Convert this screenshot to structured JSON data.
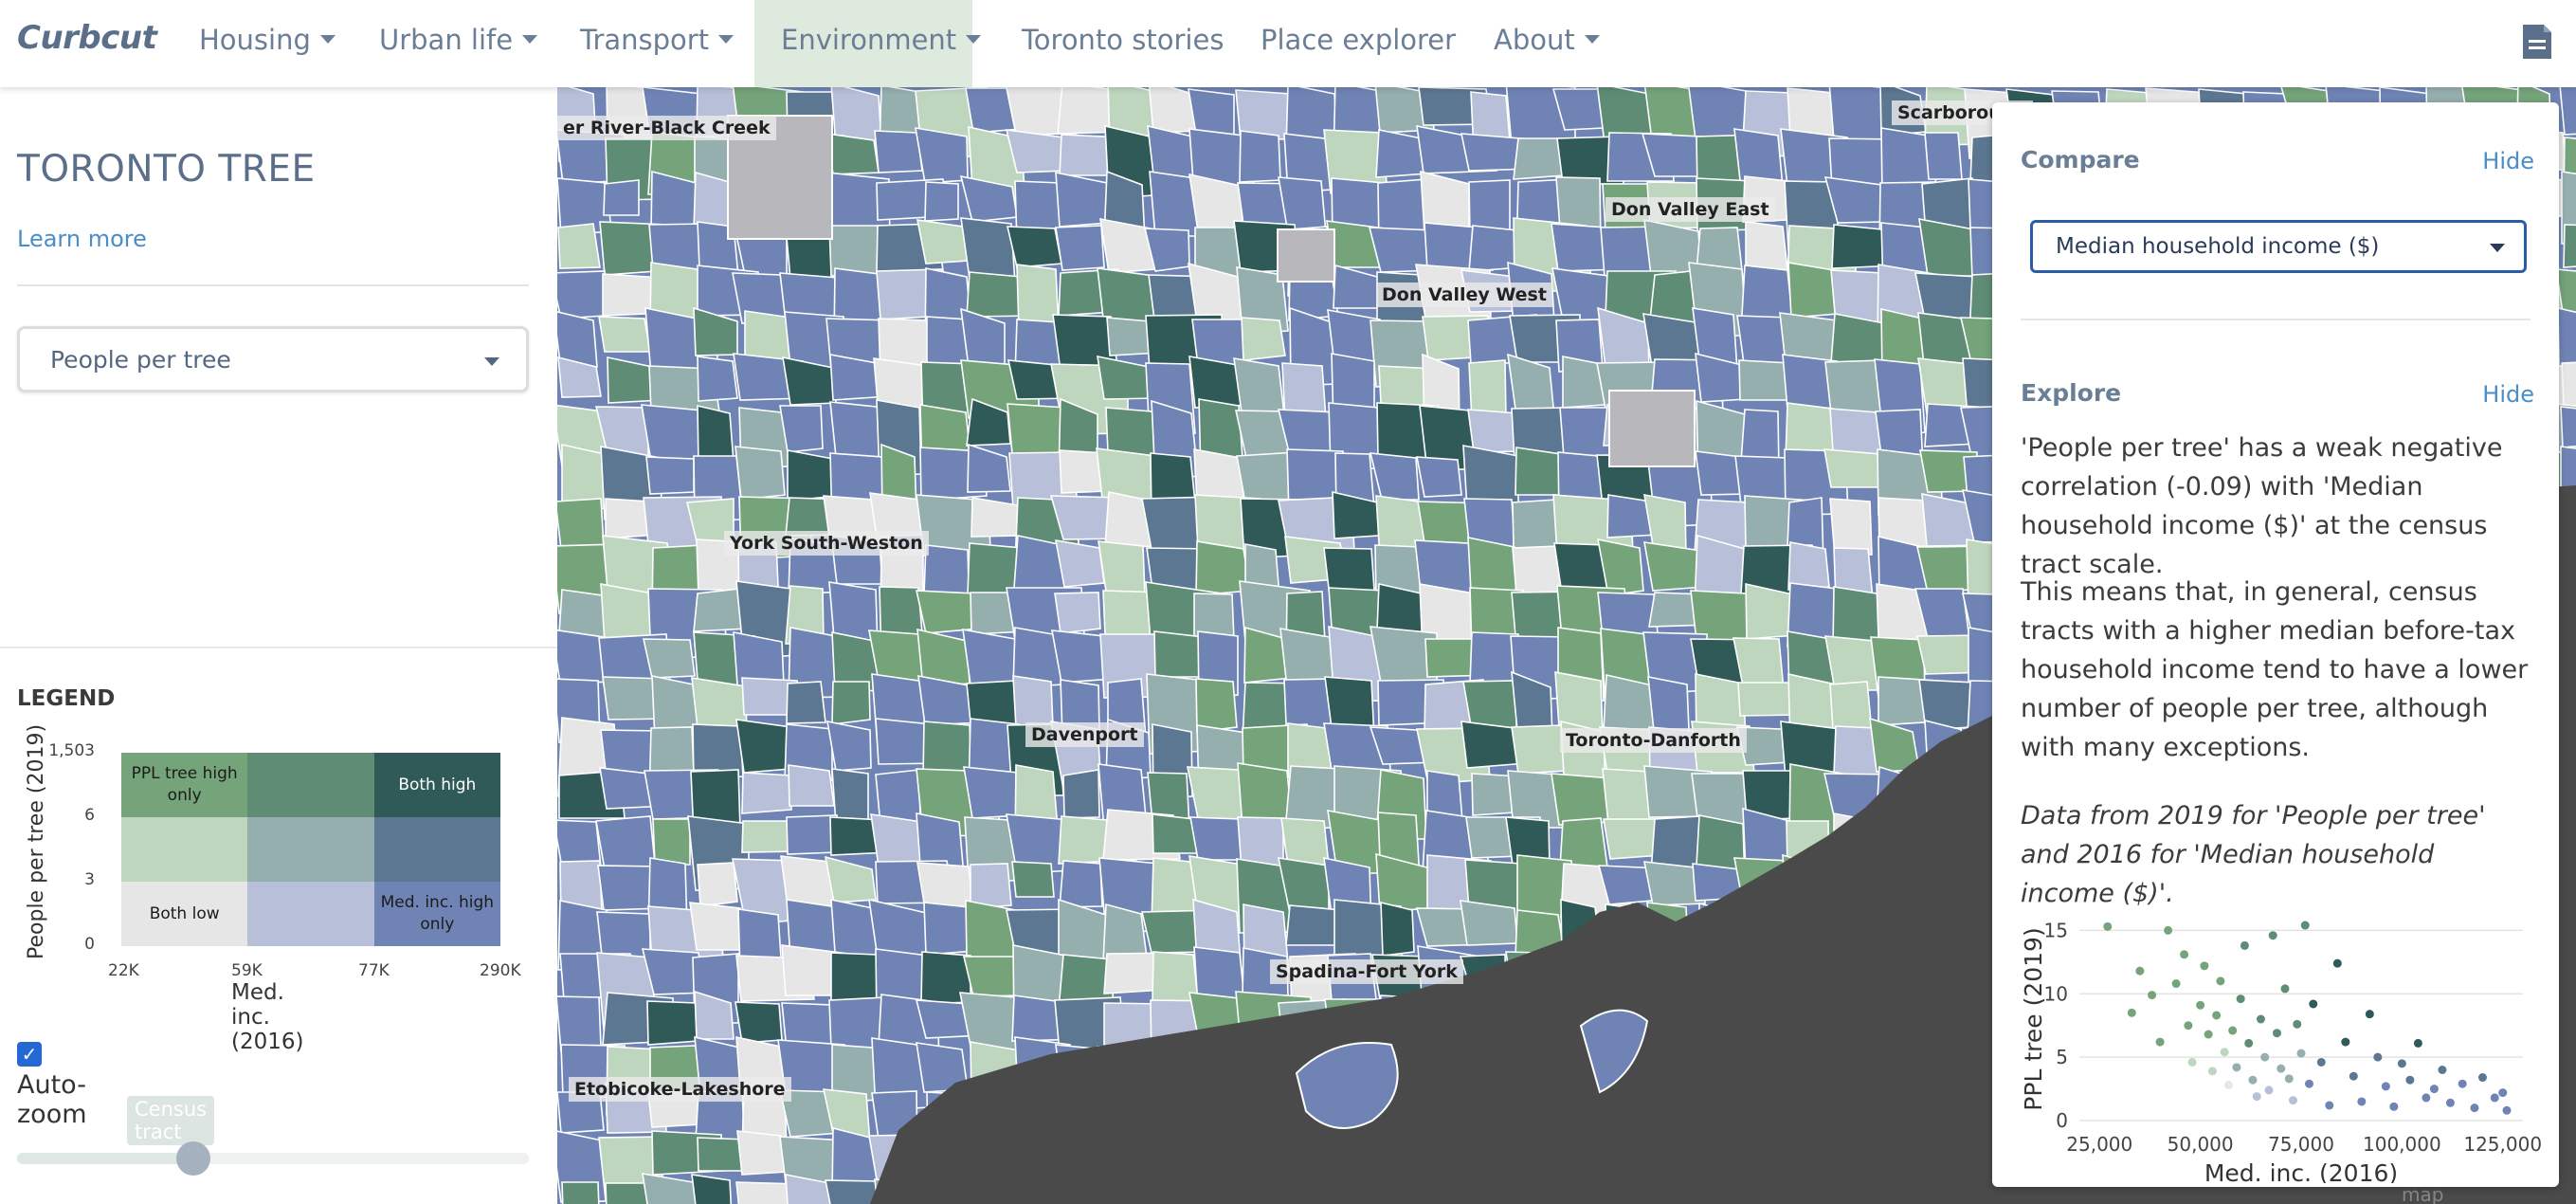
{
  "nav": {
    "brand": "Curbcut",
    "items": [
      {
        "label": "Housing",
        "dropdown": true
      },
      {
        "label": "Urban life",
        "dropdown": true
      },
      {
        "label": "Transport",
        "dropdown": true
      },
      {
        "label": "Environment",
        "dropdown": true,
        "active": true
      },
      {
        "label": "Toronto stories",
        "dropdown": false
      },
      {
        "label": "Place explorer",
        "dropdown": false
      },
      {
        "label": "About",
        "dropdown": true
      }
    ],
    "doc_icon": "document-icon"
  },
  "left_panel": {
    "title": "TORONTO TREE",
    "learn_more": "Learn more",
    "variable_select": "People per tree",
    "legend": {
      "title": "LEGEND",
      "y_label": "People per tree (2019)",
      "y_ticks": [
        "1,503",
        "6",
        "3",
        "0"
      ],
      "x_label": "Med. inc. (2016)",
      "x_ticks": [
        "22K",
        "59K",
        "77K",
        "290K"
      ],
      "cells": [
        {
          "label": "PPL tree high only",
          "color": "#75a47a"
        },
        {
          "label": "",
          "color": "#5e8c74"
        },
        {
          "label": "Both high",
          "color": "#2f5a58"
        },
        {
          "label": "",
          "color": "#bfd6be"
        },
        {
          "label": "",
          "color": "#95aeae"
        },
        {
          "label": "",
          "color": "#5c7792"
        },
        {
          "label": "Both low",
          "color": "#e6e6e6"
        },
        {
          "label": "",
          "color": "#b8bfd9"
        },
        {
          "label": "Med. inc. high only",
          "color": "#6f84b4"
        }
      ]
    },
    "auto_zoom": {
      "label": "Auto-zoom",
      "checked": true
    },
    "scale_slider": {
      "label": "Census tract",
      "value_fraction": 0.32
    }
  },
  "right_panel": {
    "compare": {
      "heading": "Compare",
      "hide": "Hide",
      "select": "Median household income ($)"
    },
    "explore": {
      "heading": "Explore",
      "hide": "Hide",
      "paragraph1": "'People per tree' has a weak negative correlation (-0.09) with 'Median household income ($)' at the census tract scale.",
      "paragraph2": "This means that, in general, census tracts with a higher median before-tax household income tend to have a lower number of people per tree, although with many exceptions.",
      "note": "Data from 2019 for 'People per tree' and 2016 for 'Median household income ($)'."
    }
  },
  "map": {
    "labels": [
      "er River-Black Creek",
      "Scarborough",
      "Don Valley East",
      "Don Valley West",
      "York South-Weston",
      "Davenport",
      "Toronto-Danforth",
      "Spadina-Fort York",
      "Etobicoke-Lakeshore"
    ],
    "footer_tag": "map",
    "colors": {
      "water": "#4a4a4a",
      "border": "#ffffff"
    }
  },
  "chart_data": {
    "type": "scatter",
    "xlabel": "Med. inc. (2016)",
    "ylabel": "PPL tree (2019)",
    "x_ticks": [
      "25,000",
      "50,000",
      "75,000",
      "100,000",
      "125,000"
    ],
    "y_ticks": [
      "0",
      "5",
      "10",
      "15"
    ],
    "xlim": [
      20000,
      130000
    ],
    "ylim": [
      0,
      16
    ],
    "grid": true,
    "points_sample": [
      [
        27000,
        15.3
      ],
      [
        33000,
        8.5
      ],
      [
        35000,
        11.8
      ],
      [
        38000,
        9.9
      ],
      [
        40000,
        6.2
      ],
      [
        42000,
        15.0
      ],
      [
        44000,
        10.8
      ],
      [
        46000,
        13.1
      ],
      [
        47000,
        7.5
      ],
      [
        48000,
        4.6
      ],
      [
        50000,
        9.1
      ],
      [
        51000,
        12.2
      ],
      [
        52000,
        6.8
      ],
      [
        53000,
        3.9
      ],
      [
        54000,
        8.3
      ],
      [
        55000,
        11.0
      ],
      [
        56000,
        5.4
      ],
      [
        57000,
        2.8
      ],
      [
        58000,
        7.1
      ],
      [
        59000,
        4.2
      ],
      [
        60000,
        9.6
      ],
      [
        61000,
        13.8
      ],
      [
        62000,
        6.1
      ],
      [
        63000,
        3.2
      ],
      [
        64000,
        1.9
      ],
      [
        65000,
        8.0
      ],
      [
        66000,
        5.0
      ],
      [
        67000,
        2.4
      ],
      [
        68000,
        14.6
      ],
      [
        69000,
        6.9
      ],
      [
        70000,
        4.1
      ],
      [
        71000,
        10.4
      ],
      [
        72000,
        3.3
      ],
      [
        73000,
        1.6
      ],
      [
        74000,
        7.6
      ],
      [
        75000,
        5.3
      ],
      [
        76000,
        15.4
      ],
      [
        77000,
        2.9
      ],
      [
        78000,
        9.2
      ],
      [
        80000,
        4.6
      ],
      [
        82000,
        1.2
      ],
      [
        84000,
        12.4
      ],
      [
        86000,
        6.2
      ],
      [
        88000,
        3.5
      ],
      [
        90000,
        1.5
      ],
      [
        92000,
        8.4
      ],
      [
        94000,
        5.0
      ],
      [
        96000,
        2.7
      ],
      [
        98000,
        1.1
      ],
      [
        100000,
        4.5
      ],
      [
        102000,
        3.2
      ],
      [
        104000,
        6.1
      ],
      [
        106000,
        1.8
      ],
      [
        108000,
        2.5
      ],
      [
        110000,
        4.0
      ],
      [
        112000,
        1.4
      ],
      [
        115000,
        2.9
      ],
      [
        118000,
        1.0
      ],
      [
        120000,
        3.4
      ],
      [
        123000,
        1.8
      ],
      [
        125000,
        2.2
      ],
      [
        126000,
        0.8
      ]
    ]
  }
}
